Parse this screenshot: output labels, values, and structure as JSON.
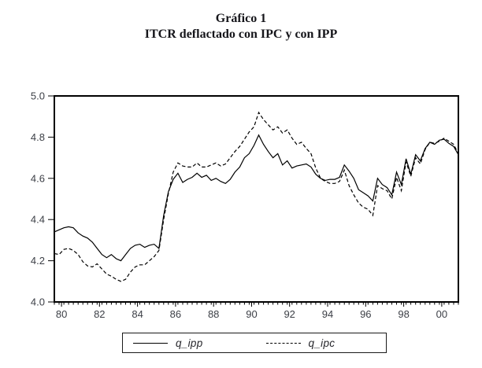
{
  "chart_data": {
    "type": "line",
    "title": "Gráfico 1",
    "subtitle": "ITCR deflactado con IPC y con IPP",
    "xlabel": "",
    "ylabel": "",
    "frequency": "quarterly",
    "x_start": 1980.0,
    "x_step": 0.25,
    "xlim": [
      1980.0,
      2001.25
    ],
    "ylim": [
      4.0,
      5.0
    ],
    "grid": false,
    "yticks": [
      4.0,
      4.2,
      4.4,
      4.6,
      4.8,
      5.0
    ],
    "ytick_labels": [
      "4.0",
      "4.2",
      "4.4",
      "4.6",
      "4.8",
      "5.0"
    ],
    "xtick_label_offset": 0.375,
    "xticks": [
      {
        "year": 1980,
        "label": "80"
      },
      {
        "year": 1982,
        "label": "82"
      },
      {
        "year": 1984,
        "label": "84"
      },
      {
        "year": 1986,
        "label": "86"
      },
      {
        "year": 1988,
        "label": "88"
      },
      {
        "year": 1990,
        "label": "90"
      },
      {
        "year": 1992,
        "label": "92"
      },
      {
        "year": 1994,
        "label": "94"
      },
      {
        "year": 1996,
        "label": "96"
      },
      {
        "year": 1998,
        "label": "98"
      },
      {
        "year": 2000,
        "label": "00"
      }
    ],
    "line_color": "#000000",
    "series": [
      {
        "name": "q_ipp",
        "line_style": "solid",
        "color": "#000000",
        "values": [
          4.34,
          4.35,
          4.36,
          4.365,
          4.36,
          4.335,
          4.32,
          4.31,
          4.29,
          4.26,
          4.23,
          4.215,
          4.23,
          4.21,
          4.2,
          4.23,
          4.26,
          4.275,
          4.28,
          4.265,
          4.275,
          4.28,
          4.26,
          4.42,
          4.535,
          4.595,
          4.625,
          4.58,
          4.595,
          4.605,
          4.625,
          4.605,
          4.615,
          4.59,
          4.6,
          4.585,
          4.575,
          4.595,
          4.63,
          4.655,
          4.7,
          4.72,
          4.76,
          4.81,
          4.765,
          4.73,
          4.7,
          4.72,
          4.665,
          4.685,
          4.65,
          4.66,
          4.665,
          4.67,
          4.655,
          4.62,
          4.6,
          4.59,
          4.595,
          4.595,
          4.605,
          4.665,
          4.635,
          4.6,
          4.545,
          4.53,
          4.515,
          4.49,
          4.6,
          4.57,
          4.555,
          4.52,
          4.63,
          4.57,
          4.695,
          4.62,
          4.715,
          4.685,
          4.745,
          4.775,
          4.765,
          4.785,
          4.79,
          4.77,
          4.755,
          4.715
        ]
      },
      {
        "name": "q_ipc",
        "line_style": "dashed",
        "color": "#000000",
        "values": [
          4.235,
          4.23,
          4.255,
          4.26,
          4.25,
          4.23,
          4.195,
          4.175,
          4.17,
          4.185,
          4.16,
          4.135,
          4.125,
          4.11,
          4.1,
          4.11,
          4.145,
          4.17,
          4.18,
          4.18,
          4.2,
          4.22,
          4.25,
          4.4,
          4.525,
          4.63,
          4.675,
          4.66,
          4.655,
          4.655,
          4.675,
          4.655,
          4.655,
          4.665,
          4.675,
          4.66,
          4.67,
          4.7,
          4.73,
          4.755,
          4.79,
          4.825,
          4.85,
          4.92,
          4.885,
          4.86,
          4.835,
          4.85,
          4.82,
          4.835,
          4.795,
          4.765,
          4.775,
          4.745,
          4.72,
          4.65,
          4.6,
          4.585,
          4.575,
          4.575,
          4.585,
          4.64,
          4.565,
          4.52,
          4.48,
          4.46,
          4.45,
          4.42,
          4.565,
          4.55,
          4.54,
          4.5,
          4.605,
          4.54,
          4.68,
          4.61,
          4.7,
          4.67,
          4.74,
          4.775,
          4.77,
          4.78,
          4.795,
          4.78,
          4.765,
          4.72
        ]
      }
    ],
    "legend": {
      "position": "bottom",
      "entries": [
        {
          "label": "q_ipp",
          "line_style": "solid"
        },
        {
          "label": "q_ipc",
          "line_style": "dashed"
        }
      ]
    }
  }
}
